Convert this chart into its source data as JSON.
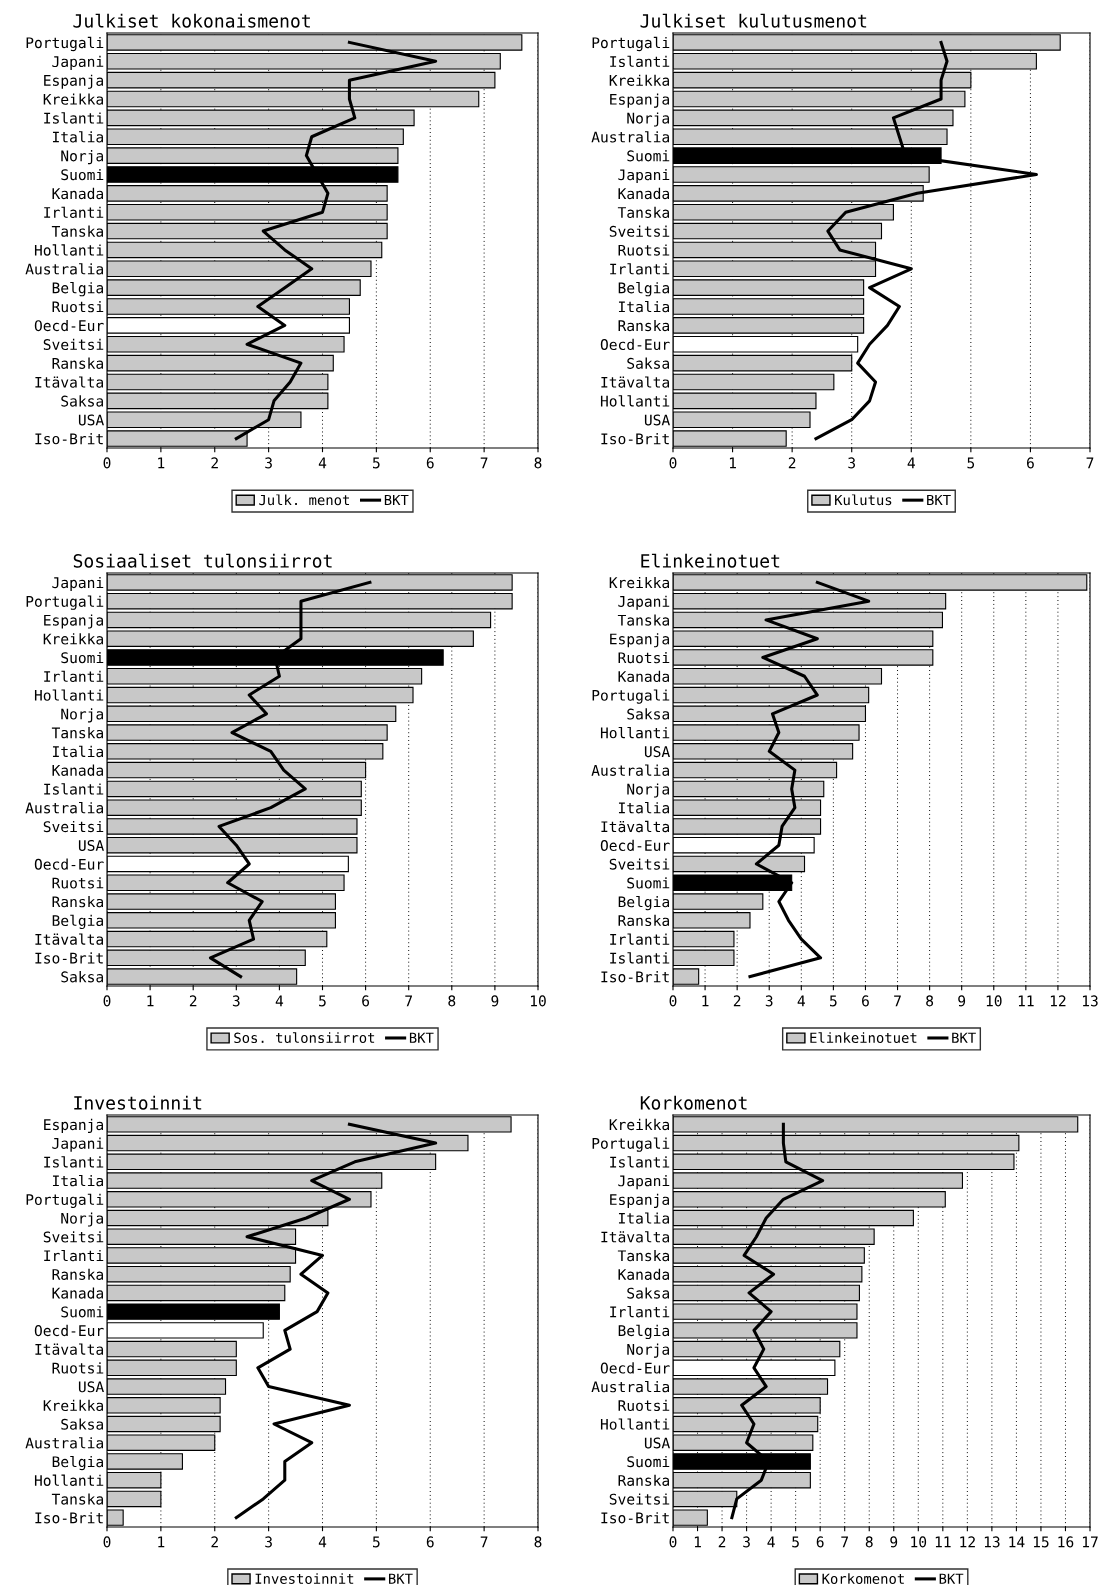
{
  "chart_data": [
    {
      "type": "bar",
      "orientation": "horizontal",
      "title": "Julkiset kokonaismenot",
      "categories": [
        "Portugali",
        "Japani",
        "Espanja",
        "Kreikka",
        "Islanti",
        "Italia",
        "Norja",
        "Suomi",
        "Kanada",
        "Irlanti",
        "Tanska",
        "Hollanti",
        "Australia",
        "Belgia",
        "Ruotsi",
        "Oecd-Eur",
        "Sveitsi",
        "Ranska",
        "Itävalta",
        "Saksa",
        "USA",
        "Iso-Brit"
      ],
      "xlim": [
        0,
        8
      ],
      "xticks": [
        0,
        1,
        2,
        3,
        4,
        5,
        6,
        7,
        8
      ],
      "grid": "x",
      "legend": "bottom",
      "series": [
        {
          "name": "Julk. menot",
          "color": "#c8c8c8",
          "colors": [
            "#c8c8c8",
            "#c8c8c8",
            "#c8c8c8",
            "#c8c8c8",
            "#c8c8c8",
            "#c8c8c8",
            "#c8c8c8",
            "#000000",
            "#c8c8c8",
            "#c8c8c8",
            "#c8c8c8",
            "#c8c8c8",
            "#c8c8c8",
            "#c8c8c8",
            "#c8c8c8",
            "#ffffff",
            "#c8c8c8",
            "#c8c8c8",
            "#c8c8c8",
            "#c8c8c8",
            "#c8c8c8",
            "#c8c8c8"
          ],
          "values": [
            7.7,
            7.3,
            7.2,
            6.9,
            5.7,
            5.5,
            5.4,
            5.4,
            5.2,
            5.2,
            5.2,
            5.1,
            4.9,
            4.7,
            4.5,
            4.5,
            4.4,
            4.2,
            4.1,
            4.1,
            3.6,
            2.6
          ]
        },
        {
          "name": "BKT",
          "type": "line",
          "color": "#000000",
          "values": [
            4.5,
            6.1,
            4.5,
            4.5,
            4.6,
            3.8,
            3.7,
            3.9,
            4.1,
            4.0,
            2.9,
            3.3,
            3.8,
            3.3,
            2.8,
            3.3,
            2.6,
            3.6,
            3.4,
            3.1,
            3.0,
            2.4
          ]
        }
      ]
    },
    {
      "type": "bar",
      "orientation": "horizontal",
      "title": "Julkiset kulutusmenot",
      "categories": [
        "Portugali",
        "Islanti",
        "Kreikka",
        "Espanja",
        "Norja",
        "Australia",
        "Suomi",
        "Japani",
        "Kanada",
        "Tanska",
        "Sveitsi",
        "Ruotsi",
        "Irlanti",
        "Belgia",
        "Italia",
        "Ranska",
        "Oecd-Eur",
        "Saksa",
        "Itävalta",
        "Hollanti",
        "USA",
        "Iso-Brit"
      ],
      "xlim": [
        0,
        7
      ],
      "xticks": [
        0,
        1,
        2,
        3,
        4,
        5,
        6,
        7
      ],
      "grid": "x",
      "legend": "bottom",
      "series": [
        {
          "name": "Kulutus",
          "color": "#c8c8c8",
          "colors": [
            "#c8c8c8",
            "#c8c8c8",
            "#c8c8c8",
            "#c8c8c8",
            "#c8c8c8",
            "#c8c8c8",
            "#000000",
            "#c8c8c8",
            "#c8c8c8",
            "#c8c8c8",
            "#c8c8c8",
            "#c8c8c8",
            "#c8c8c8",
            "#c8c8c8",
            "#c8c8c8",
            "#c8c8c8",
            "#ffffff",
            "#c8c8c8",
            "#c8c8c8",
            "#c8c8c8",
            "#c8c8c8",
            "#c8c8c8"
          ],
          "values": [
            6.5,
            6.1,
            5.0,
            4.9,
            4.7,
            4.6,
            4.5,
            4.3,
            4.2,
            3.7,
            3.5,
            3.4,
            3.4,
            3.2,
            3.2,
            3.2,
            3.1,
            3.0,
            2.7,
            2.4,
            2.3,
            1.9
          ]
        },
        {
          "name": "BKT",
          "type": "line",
          "color": "#000000",
          "values": [
            4.5,
            4.6,
            4.5,
            4.5,
            3.7,
            3.8,
            3.9,
            6.1,
            4.1,
            2.9,
            2.6,
            2.8,
            4.0,
            3.3,
            3.8,
            3.6,
            3.3,
            3.1,
            3.4,
            3.3,
            3.0,
            2.4
          ]
        }
      ]
    },
    {
      "type": "bar",
      "orientation": "horizontal",
      "title": "Sosiaaliset tulonsiirrot",
      "categories": [
        "Japani",
        "Portugali",
        "Espanja",
        "Kreikka",
        "Suomi",
        "Irlanti",
        "Hollanti",
        "Norja",
        "Tanska",
        "Italia",
        "Kanada",
        "Islanti",
        "Australia",
        "Sveitsi",
        "USA",
        "Oecd-Eur",
        "Ruotsi",
        "Ranska",
        "Belgia",
        "Itävalta",
        "Iso-Brit",
        "Saksa"
      ],
      "xlim": [
        0,
        10
      ],
      "xticks": [
        0,
        1,
        2,
        3,
        4,
        5,
        6,
        7,
        8,
        9,
        10
      ],
      "grid": "x",
      "legend": "bottom",
      "series": [
        {
          "name": "Sos. tulonsiirrot",
          "color": "#c8c8c8",
          "colors": [
            "#c8c8c8",
            "#c8c8c8",
            "#c8c8c8",
            "#c8c8c8",
            "#000000",
            "#c8c8c8",
            "#c8c8c8",
            "#c8c8c8",
            "#c8c8c8",
            "#c8c8c8",
            "#c8c8c8",
            "#c8c8c8",
            "#c8c8c8",
            "#c8c8c8",
            "#c8c8c8",
            "#ffffff",
            "#c8c8c8",
            "#c8c8c8",
            "#c8c8c8",
            "#c8c8c8",
            "#c8c8c8",
            "#c8c8c8"
          ],
          "values": [
            9.4,
            9.4,
            8.9,
            8.5,
            7.8,
            7.3,
            7.1,
            6.7,
            6.5,
            6.4,
            6.0,
            5.9,
            5.9,
            5.8,
            5.8,
            5.6,
            5.5,
            5.3,
            5.3,
            5.1,
            4.6,
            4.4
          ]
        },
        {
          "name": "BKT",
          "type": "line",
          "color": "#000000",
          "values": [
            6.1,
            4.5,
            4.5,
            4.5,
            3.9,
            4.0,
            3.3,
            3.7,
            2.9,
            3.8,
            4.1,
            4.6,
            3.8,
            2.6,
            3.0,
            3.3,
            2.8,
            3.6,
            3.3,
            3.4,
            2.4,
            3.1
          ]
        }
      ]
    },
    {
      "type": "bar",
      "orientation": "horizontal",
      "title": "Elinkeinotuet",
      "categories": [
        "Kreikka",
        "Japani",
        "Tanska",
        "Espanja",
        "Ruotsi",
        "Kanada",
        "Portugali",
        "Saksa",
        "Hollanti",
        "USA",
        "Australia",
        "Norja",
        "Italia",
        "Itävalta",
        "Oecd-Eur",
        "Sveitsi",
        "Suomi",
        "Belgia",
        "Ranska",
        "Irlanti",
        "Islanti",
        "Iso-Brit"
      ],
      "xlim": [
        0,
        13
      ],
      "xticks": [
        0,
        1,
        2,
        3,
        4,
        5,
        6,
        7,
        8,
        9,
        10,
        11,
        12,
        13
      ],
      "grid": "x",
      "legend": "bottom",
      "series": [
        {
          "name": "Elinkeinotuet",
          "color": "#c8c8c8",
          "colors": [
            "#c8c8c8",
            "#c8c8c8",
            "#c8c8c8",
            "#c8c8c8",
            "#c8c8c8",
            "#c8c8c8",
            "#c8c8c8",
            "#c8c8c8",
            "#c8c8c8",
            "#c8c8c8",
            "#c8c8c8",
            "#c8c8c8",
            "#c8c8c8",
            "#c8c8c8",
            "#ffffff",
            "#c8c8c8",
            "#000000",
            "#c8c8c8",
            "#c8c8c8",
            "#c8c8c8",
            "#c8c8c8",
            "#c8c8c8"
          ],
          "values": [
            12.9,
            8.5,
            8.4,
            8.1,
            8.1,
            6.5,
            6.1,
            6.0,
            5.8,
            5.6,
            5.1,
            4.7,
            4.6,
            4.6,
            4.4,
            4.1,
            3.7,
            2.8,
            2.4,
            1.9,
            1.9,
            0.8
          ]
        },
        {
          "name": "BKT",
          "type": "line",
          "color": "#000000",
          "values": [
            4.5,
            6.1,
            2.9,
            4.5,
            2.8,
            4.1,
            4.5,
            3.1,
            3.3,
            3.0,
            3.8,
            3.7,
            3.8,
            3.4,
            3.3,
            2.6,
            3.7,
            3.3,
            3.6,
            4.0,
            4.6,
            2.4
          ]
        }
      ]
    },
    {
      "type": "bar",
      "orientation": "horizontal",
      "title": "Investoinnit",
      "categories": [
        "Espanja",
        "Japani",
        "Islanti",
        "Italia",
        "Portugali",
        "Norja",
        "Sveitsi",
        "Irlanti",
        "Ranska",
        "Kanada",
        "Suomi",
        "Oecd-Eur",
        "Itävalta",
        "Ruotsi",
        "USA",
        "Kreikka",
        "Saksa",
        "Australia",
        "Belgia",
        "Hollanti",
        "Tanska",
        "Iso-Brit"
      ],
      "xlim": [
        0,
        8
      ],
      "xticks": [
        0,
        1,
        2,
        3,
        4,
        5,
        6,
        7,
        8
      ],
      "grid": "x",
      "legend": "bottom",
      "series": [
        {
          "name": "Investoinnit",
          "color": "#c8c8c8",
          "colors": [
            "#c8c8c8",
            "#c8c8c8",
            "#c8c8c8",
            "#c8c8c8",
            "#c8c8c8",
            "#c8c8c8",
            "#c8c8c8",
            "#c8c8c8",
            "#c8c8c8",
            "#c8c8c8",
            "#000000",
            "#ffffff",
            "#c8c8c8",
            "#c8c8c8",
            "#c8c8c8",
            "#c8c8c8",
            "#c8c8c8",
            "#c8c8c8",
            "#c8c8c8",
            "#c8c8c8",
            "#c8c8c8",
            "#c8c8c8"
          ],
          "values": [
            7.5,
            6.7,
            6.1,
            5.1,
            4.9,
            4.1,
            3.5,
            3.5,
            3.4,
            3.3,
            3.2,
            2.9,
            2.4,
            2.4,
            2.2,
            2.1,
            2.1,
            2.0,
            1.4,
            1.0,
            1.0,
            0.3
          ]
        },
        {
          "name": "BKT",
          "type": "line",
          "color": "#000000",
          "values": [
            4.5,
            6.1,
            4.6,
            3.8,
            4.5,
            3.7,
            2.6,
            4.0,
            3.6,
            4.1,
            3.9,
            3.3,
            3.4,
            2.8,
            3.0,
            4.5,
            3.1,
            3.8,
            3.3,
            3.3,
            2.9,
            2.4
          ]
        }
      ]
    },
    {
      "type": "bar",
      "orientation": "horizontal",
      "title": "Korkomenot",
      "categories": [
        "Kreikka",
        "Portugali",
        "Islanti",
        "Japani",
        "Espanja",
        "Italia",
        "Itävalta",
        "Tanska",
        "Kanada",
        "Saksa",
        "Irlanti",
        "Belgia",
        "Norja",
        "Oecd-Eur",
        "Australia",
        "Ruotsi",
        "Hollanti",
        "USA",
        "Suomi",
        "Ranska",
        "Sveitsi",
        "Iso-Brit"
      ],
      "xlim": [
        0,
        17
      ],
      "xticks": [
        0,
        1,
        2,
        3,
        4,
        5,
        6,
        7,
        8,
        9,
        10,
        11,
        12,
        13,
        14,
        15,
        16,
        17
      ],
      "grid": "x",
      "legend": "bottom",
      "series": [
        {
          "name": "Korkomenot",
          "color": "#c8c8c8",
          "colors": [
            "#c8c8c8",
            "#c8c8c8",
            "#c8c8c8",
            "#c8c8c8",
            "#c8c8c8",
            "#c8c8c8",
            "#c8c8c8",
            "#c8c8c8",
            "#c8c8c8",
            "#c8c8c8",
            "#c8c8c8",
            "#c8c8c8",
            "#c8c8c8",
            "#ffffff",
            "#c8c8c8",
            "#c8c8c8",
            "#c8c8c8",
            "#c8c8c8",
            "#000000",
            "#c8c8c8",
            "#c8c8c8",
            "#c8c8c8"
          ],
          "values": [
            16.5,
            14.1,
            13.9,
            11.8,
            11.1,
            9.8,
            8.2,
            7.8,
            7.7,
            7.6,
            7.5,
            7.5,
            6.8,
            6.6,
            6.3,
            6.0,
            5.9,
            5.7,
            5.6,
            5.6,
            2.6,
            1.4
          ]
        },
        {
          "name": "BKT",
          "type": "line",
          "color": "#000000",
          "values": [
            4.5,
            4.5,
            4.6,
            6.1,
            4.5,
            3.8,
            3.4,
            2.9,
            4.1,
            3.1,
            4.0,
            3.3,
            3.7,
            3.3,
            3.8,
            2.8,
            3.3,
            3.0,
            3.9,
            3.6,
            2.6,
            2.4
          ]
        }
      ]
    }
  ]
}
